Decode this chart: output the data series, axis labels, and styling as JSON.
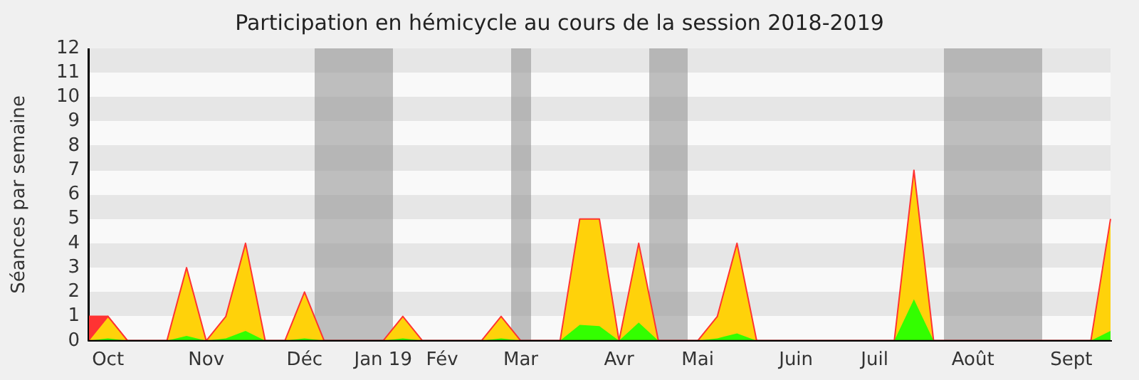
{
  "chart_data": {
    "type": "area",
    "title": "Participation en hémicycle au cours de la session 2018-2019",
    "ylabel": "Séances par semaine",
    "categories": [
      null,
      "Oct",
      null,
      null,
      null,
      null,
      "Nov",
      null,
      null,
      null,
      null,
      "Déc",
      null,
      null,
      null,
      "Jan 19",
      null,
      null,
      "Fév",
      null,
      null,
      null,
      "Mar",
      null,
      null,
      null,
      null,
      "Avr",
      null,
      null,
      null,
      "Mai",
      null,
      null,
      null,
      null,
      "Juin",
      null,
      null,
      null,
      "Juil",
      null,
      null,
      null,
      null,
      "Août",
      null,
      null,
      null,
      null,
      "Sept",
      null,
      null
    ],
    "series": [
      {
        "color": "#ff3333",
        "values": [
          1,
          1,
          0,
          0,
          0,
          0,
          0,
          0,
          0,
          0,
          0,
          0,
          0,
          0,
          0,
          0,
          0,
          0,
          0,
          0,
          0,
          0,
          0,
          0,
          0,
          0,
          0,
          0,
          0,
          0,
          0,
          0,
          0,
          0,
          0,
          0,
          0,
          0,
          0,
          0,
          0,
          0,
          0,
          0,
          0,
          0,
          0,
          0,
          0,
          0,
          0,
          0,
          0
        ]
      },
      {
        "color": "#ffd20a",
        "values": [
          0,
          1,
          0,
          0,
          0,
          3,
          0,
          1,
          4,
          0,
          0,
          2,
          0,
          0,
          0,
          0,
          1,
          0,
          0,
          0,
          0,
          1,
          0,
          0,
          0,
          5,
          5,
          0,
          4,
          0,
          0,
          0,
          1,
          4,
          0,
          0,
          0,
          0,
          0,
          0,
          0,
          0,
          7,
          0,
          0,
          0,
          0,
          0,
          0,
          0,
          0,
          0,
          5
        ]
      },
      {
        "color": "#33ff00",
        "values": [
          0,
          0.1,
          0,
          0,
          0,
          0.2,
          0,
          0.1,
          0.4,
          0,
          0,
          0.1,
          0,
          0,
          0,
          0,
          0.1,
          0,
          0,
          0,
          0,
          0.1,
          0,
          0,
          0,
          0.65,
          0.6,
          0,
          0.75,
          0,
          0,
          0,
          0.1,
          0.3,
          0,
          0,
          0,
          0,
          0,
          0,
          0,
          0,
          1.7,
          0,
          0,
          0,
          0,
          0,
          0,
          0,
          0,
          0,
          0.4
        ]
      }
    ],
    "ylim": [
      0,
      12
    ],
    "yticks": [
      0,
      1,
      2,
      3,
      4,
      5,
      6,
      7,
      8,
      9,
      10,
      11,
      12
    ]
  }
}
